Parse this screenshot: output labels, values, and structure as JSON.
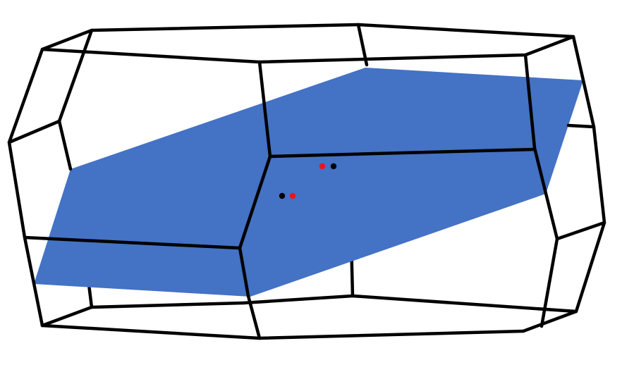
{
  "colors": {
    "background": "#ffffff",
    "plane": "#4472c4",
    "edges": "#000000",
    "point_red": "#e8161b",
    "point_black": "#000000"
  },
  "elements": {
    "polyhedron": "truncated-octahedron-wireframe",
    "plane": "cutting-plane",
    "points": [
      {
        "color": "red"
      },
      {
        "color": "black"
      },
      {
        "color": "black"
      },
      {
        "color": "red"
      }
    ]
  }
}
